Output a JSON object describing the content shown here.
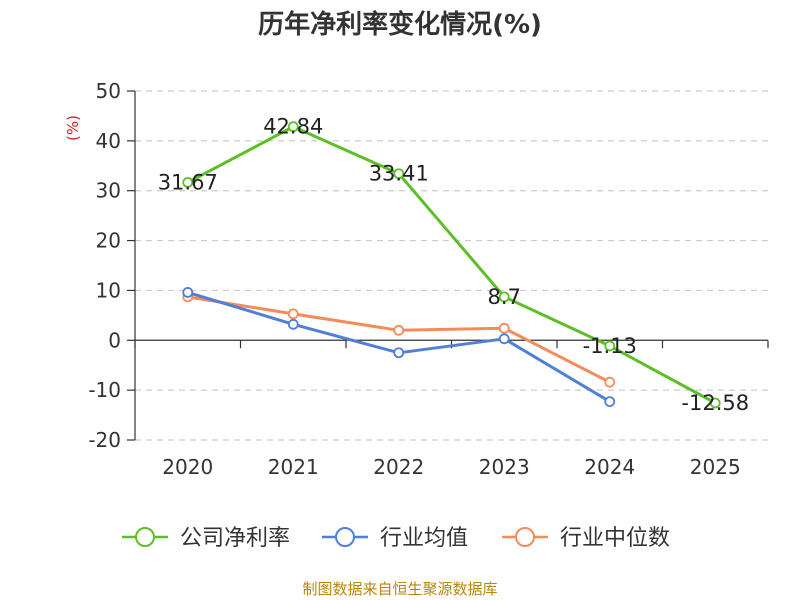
{
  "chart_data": {
    "type": "line",
    "title": "历年净利率变化情况(%)",
    "ylabel": "(%)",
    "xlabel": "",
    "categories": [
      "2020",
      "2021",
      "2022",
      "2023",
      "2024",
      "2025"
    ],
    "ylim": [
      -20,
      50
    ],
    "yticks": [
      50,
      40,
      30,
      20,
      10,
      0,
      -10,
      -20
    ],
    "grid": true,
    "legend_position": "bottom",
    "series": [
      {
        "name": "公司净利率",
        "color": "#5cbf27",
        "values": [
          31.67,
          42.84,
          33.41,
          8.7,
          -1.13,
          -12.58
        ],
        "labels": [
          "31.67",
          "42.84",
          "33.41",
          "8.7",
          "-1.13",
          "-12.58"
        ]
      },
      {
        "name": "行业均值",
        "color": "#4f7fd6",
        "values": [
          9.6,
          3.2,
          -2.5,
          0.3,
          -12.3,
          null
        ]
      },
      {
        "name": "行业中位数",
        "color": "#f28c5a",
        "values": [
          8.7,
          5.3,
          2.0,
          2.4,
          -8.4,
          null
        ]
      }
    ]
  },
  "footer": "制图数据来自恒生聚源数据库"
}
